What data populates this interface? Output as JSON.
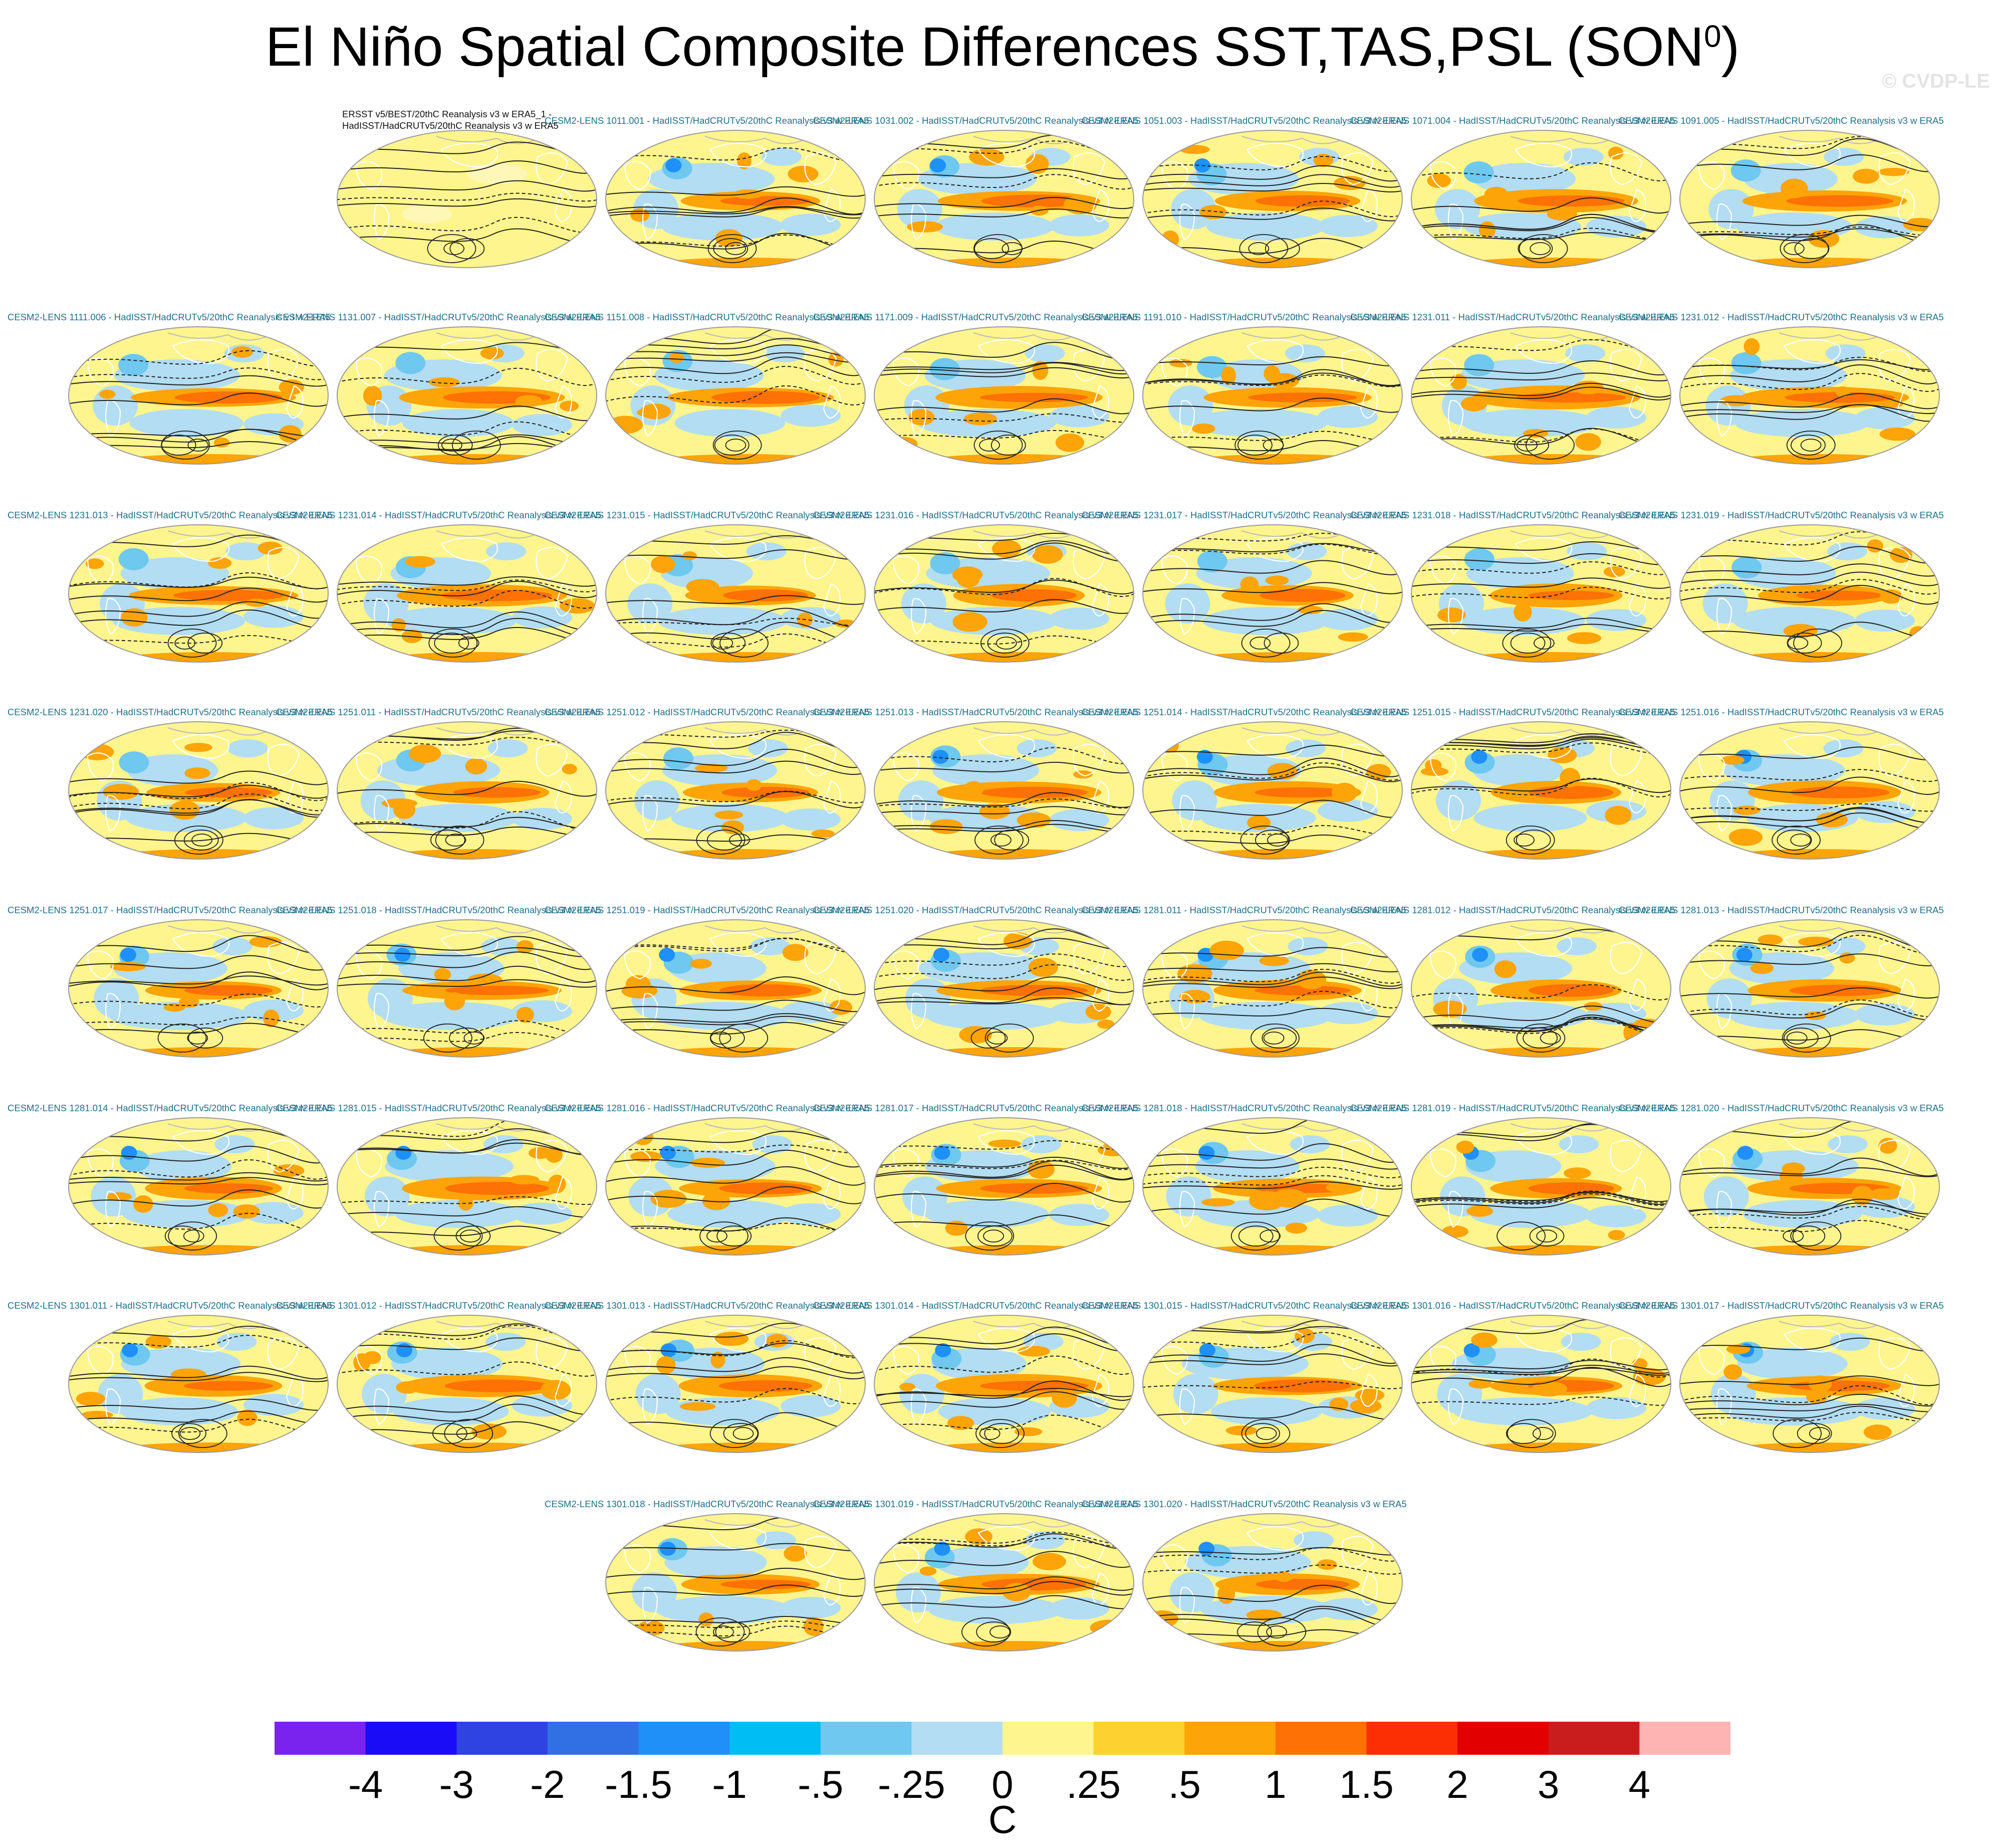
{
  "title": "El Niño Spatial Composite Differences SST,TAS,PSL (SON",
  "title_sup": "0",
  "title_close": ")",
  "copyright": "© CVDP-LE",
  "panels": [
    {
      "caption": "ERSST v5/BEST/20thC Reanalysis v3 w ERA5_1 -",
      "caption2": "HadISST/HadCRUTv5/20thC Reanalysis v3 w ERA5",
      "observed": true
    },
    {
      "caption": "CESM2-LENS 1011.001 - HadISST/HadCRUTv5/20thC Reanalysis v3 w ERA5"
    },
    {
      "caption": "CESM2-LENS 1031.002 - HadISST/HadCRUTv5/20thC Reanalysis v3 w ERA5"
    },
    {
      "caption": "CESM2-LENS 1051.003 - HadISST/HadCRUTv5/20thC Reanalysis v3 w ERA5"
    },
    {
      "caption": "CESM2-LENS 1071.004 - HadISST/HadCRUTv5/20thC Reanalysis v3 w ERA5"
    },
    {
      "caption": "CESM2-LENS 1091.005 - HadISST/HadCRUTv5/20thC Reanalysis v3 w ERA5"
    },
    {
      "caption": "CESM2-LENS 1111.006 - HadISST/HadCRUTv5/20thC Reanalysis v3 w ERA5"
    },
    {
      "caption": "CESM2-LENS 1131.007 - HadISST/HadCRUTv5/20thC Reanalysis v3 w ERA5"
    },
    {
      "caption": "CESM2-LENS 1151.008 - HadISST/HadCRUTv5/20thC Reanalysis v3 w ERA5"
    },
    {
      "caption": "CESM2-LENS 1171.009 - HadISST/HadCRUTv5/20thC Reanalysis v3 w ERA5"
    },
    {
      "caption": "CESM2-LENS 1191.010 - HadISST/HadCRUTv5/20thC Reanalysis v3 w ERA5"
    },
    {
      "caption": "CESM2-LENS 1231.011 - HadISST/HadCRUTv5/20thC Reanalysis v3 w ERA5"
    },
    {
      "caption": "CESM2-LENS 1231.012 - HadISST/HadCRUTv5/20thC Reanalysis v3 w ERA5"
    },
    {
      "caption": "CESM2-LENS 1231.013 - HadISST/HadCRUTv5/20thC Reanalysis v3 w ERA5"
    },
    {
      "caption": "CESM2-LENS 1231.014 - HadISST/HadCRUTv5/20thC Reanalysis v3 w ERA5"
    },
    {
      "caption": "CESM2-LENS 1231.015 - HadISST/HadCRUTv5/20thC Reanalysis v3 w ERA5"
    },
    {
      "caption": "CESM2-LENS 1231.016 - HadISST/HadCRUTv5/20thC Reanalysis v3 w ERA5"
    },
    {
      "caption": "CESM2-LENS 1231.017 - HadISST/HadCRUTv5/20thC Reanalysis v3 w ERA5"
    },
    {
      "caption": "CESM2-LENS 1231.018 - HadISST/HadCRUTv5/20thC Reanalysis v3 w ERA5"
    },
    {
      "caption": "CESM2-LENS 1231.019 - HadISST/HadCRUTv5/20thC Reanalysis v3 w ERA5"
    },
    {
      "caption": "CESM2-LENS 1231.020 - HadISST/HadCRUTv5/20thC Reanalysis v3 w ERA5"
    },
    {
      "caption": "CESM2-LENS 1251.011 - HadISST/HadCRUTv5/20thC Reanalysis v3 w ERA5"
    },
    {
      "caption": "CESM2-LENS 1251.012 - HadISST/HadCRUTv5/20thC Reanalysis v3 w ERA5"
    },
    {
      "caption": "CESM2-LENS 1251.013 - HadISST/HadCRUTv5/20thC Reanalysis v3 w ERA5"
    },
    {
      "caption": "CESM2-LENS 1251.014 - HadISST/HadCRUTv5/20thC Reanalysis v3 w ERA5"
    },
    {
      "caption": "CESM2-LENS 1251.015 - HadISST/HadCRUTv5/20thC Reanalysis v3 w ERA5"
    },
    {
      "caption": "CESM2-LENS 1251.016 - HadISST/HadCRUTv5/20thC Reanalysis v3 w ERA5"
    },
    {
      "caption": "CESM2-LENS 1251.017 - HadISST/HadCRUTv5/20thC Reanalysis v3 w ERA5"
    },
    {
      "caption": "CESM2-LENS 1251.018 - HadISST/HadCRUTv5/20thC Reanalysis v3 w ERA5"
    },
    {
      "caption": "CESM2-LENS 1251.019 - HadISST/HadCRUTv5/20thC Reanalysis v3 w ERA5"
    },
    {
      "caption": "CESM2-LENS 1251.020 - HadISST/HadCRUTv5/20thC Reanalysis v3 w ERA5"
    },
    {
      "caption": "CESM2-LENS 1281.011 - HadISST/HadCRUTv5/20thC Reanalysis v3 w ERA5"
    },
    {
      "caption": "CESM2-LENS 1281.012 - HadISST/HadCRUTv5/20thC Reanalysis v3 w ERA5"
    },
    {
      "caption": "CESM2-LENS 1281.013 - HadISST/HadCRUTv5/20thC Reanalysis v3 w ERA5"
    },
    {
      "caption": "CESM2-LENS 1281.014 - HadISST/HadCRUTv5/20thC Reanalysis v3 w ERA5"
    },
    {
      "caption": "CESM2-LENS 1281.015 - HadISST/HadCRUTv5/20thC Reanalysis v3 w ERA5"
    },
    {
      "caption": "CESM2-LENS 1281.016 - HadISST/HadCRUTv5/20thC Reanalysis v3 w ERA5"
    },
    {
      "caption": "CESM2-LENS 1281.017 - HadISST/HadCRUTv5/20thC Reanalysis v3 w ERA5"
    },
    {
      "caption": "CESM2-LENS 1281.018 - HadISST/HadCRUTv5/20thC Reanalysis v3 w ERA5"
    },
    {
      "caption": "CESM2-LENS 1281.019 - HadISST/HadCRUTv5/20thC Reanalysis v3 w ERA5"
    },
    {
      "caption": "CESM2-LENS 1281.020 - HadISST/HadCRUTv5/20thC Reanalysis v3 w ERA5"
    },
    {
      "caption": "CESM2-LENS 1301.011 - HadISST/HadCRUTv5/20thC Reanalysis v3 w ERA5"
    },
    {
      "caption": "CESM2-LENS 1301.012 - HadISST/HadCRUTv5/20thC Reanalysis v3 w ERA5"
    },
    {
      "caption": "CESM2-LENS 1301.013 - HadISST/HadCRUTv5/20thC Reanalysis v3 w ERA5"
    },
    {
      "caption": "CESM2-LENS 1301.014 - HadISST/HadCRUTv5/20thC Reanalysis v3 w ERA5"
    },
    {
      "caption": "CESM2-LENS 1301.015 - HadISST/HadCRUTv5/20thC Reanalysis v3 w ERA5"
    },
    {
      "caption": "CESM2-LENS 1301.016 - HadISST/HadCRUTv5/20thC Reanalysis v3 w ERA5"
    },
    {
      "caption": "CESM2-LENS 1301.017 - HadISST/HadCRUTv5/20thC Reanalysis v3 w ERA5"
    },
    {
      "caption": "CESM2-LENS 1301.018 - HadISST/HadCRUTv5/20thC Reanalysis v3 w ERA5"
    },
    {
      "caption": "CESM2-LENS 1301.019 - HadISST/HadCRUTv5/20thC Reanalysis v3 w ERA5"
    },
    {
      "caption": "CESM2-LENS 1301.020 - HadISST/HadCRUTv5/20thC Reanalysis v3 w ERA5"
    }
  ],
  "colorbar": {
    "colors": [
      "#7a23ee",
      "#1a0cf6",
      "#2f42e2",
      "#3170e4",
      "#1e90f7",
      "#00bdf4",
      "#6ec8f0",
      "#b2ddf2",
      "#fef58e",
      "#fcd130",
      "#fda408",
      "#fd7105",
      "#fb2f03",
      "#e20000",
      "#c91d1d",
      "#ffb4b4"
    ],
    "labels": [
      "-4",
      "-3",
      "-2",
      "-1.5",
      "-1",
      "-.5",
      "-.25",
      "0",
      ".25",
      ".5",
      "1",
      "1.5",
      "2",
      "3",
      "4"
    ],
    "units": "C"
  },
  "palette": {
    "neutral_warm": "#fef58e",
    "neutral_cool": "#b2ddf2",
    "warm": "#fda408",
    "warmer": "#fd7105",
    "cool": "#6ec8f0",
    "colder": "#1e90f7",
    "land_outline": "#ffffff",
    "contour": "#222222"
  }
}
